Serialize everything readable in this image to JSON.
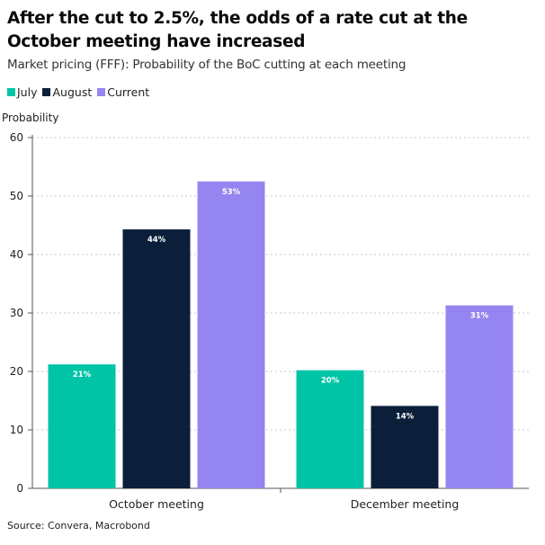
{
  "title": "After the cut to 2.5%, the odds of a rate cut at the October meeting have increased",
  "subtitle": "Market pricing (FFF): Probability of the BoC cutting at each meeting",
  "source": "Source: Convera, Macrobond",
  "legend": [
    {
      "label": "July",
      "color": "#00c4a6"
    },
    {
      "label": "August",
      "color": "#0b1f3a"
    },
    {
      "label": "Current",
      "color": "#9585f0"
    }
  ],
  "chart_data": {
    "type": "bar",
    "title": "After the cut to 2.5%, the odds of a rate cut at the October meeting have increased",
    "subtitle": "Market pricing (FFF): Probability of the BoC cutting at each meeting",
    "xlabel": "",
    "ylabel": "Probability",
    "ylim": [
      0,
      60
    ],
    "yticks": [
      0,
      10,
      20,
      30,
      40,
      50,
      60
    ],
    "grid": true,
    "legend_position": "top-left",
    "categories": [
      "October meeting",
      "December meeting"
    ],
    "series": [
      {
        "name": "July",
        "color": "#00c4a6",
        "values": [
          21.2,
          20.2
        ],
        "labels": [
          "21%",
          "20%"
        ]
      },
      {
        "name": "August",
        "color": "#0b1f3a",
        "values": [
          44.3,
          14.1
        ],
        "labels": [
          "44%",
          "14%"
        ]
      },
      {
        "name": "Current",
        "color": "#9585f0",
        "values": [
          52.5,
          31.3
        ],
        "labels": [
          "53%",
          "31%"
        ]
      }
    ]
  }
}
